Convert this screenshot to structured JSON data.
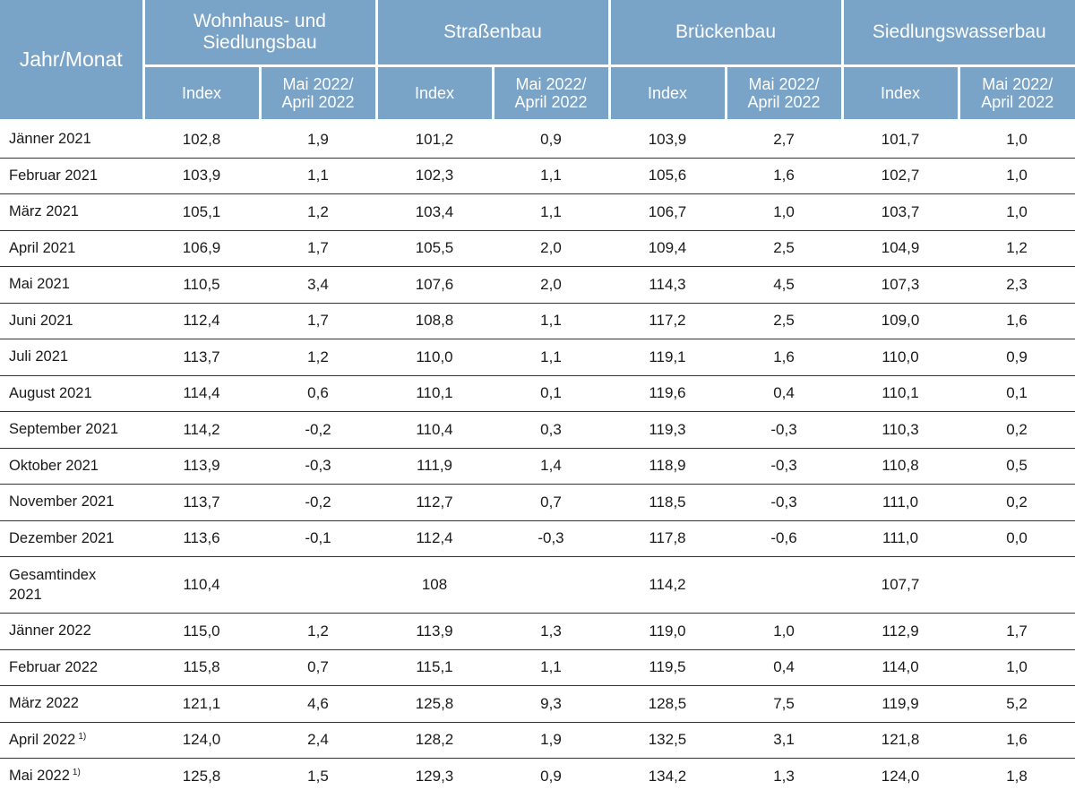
{
  "header": {
    "row_label": "Jahr/Monat",
    "groups": [
      {
        "name": "Wohnhaus- und Siedlungsbau"
      },
      {
        "name": "Straßenbau"
      },
      {
        "name": "Brückenbau"
      },
      {
        "name": "Siedlungswasserbau"
      }
    ],
    "sub_index": "Index",
    "sub_change": "Mai 2022/ April 2022"
  },
  "chart_data": {
    "type": "table",
    "columns": [
      "Jahr/Monat",
      "Wohnhaus- und Siedlungsbau Index",
      "Wohnhaus- und Siedlungsbau Mai 2022/ April 2022",
      "Straßenbau Index",
      "Straßenbau Mai 2022/ April 2022",
      "Brückenbau Index",
      "Brückenbau Mai 2022/ April 2022",
      "Siedlungswasserbau Index",
      "Siedlungswasserbau Mai 2022/ April 2022"
    ],
    "rows": [
      {
        "label": "Jänner 2021",
        "note": "",
        "values": [
          "102,8",
          "1,9",
          "101,2",
          "0,9",
          "103,9",
          "2,7",
          "101,7",
          "1,0"
        ]
      },
      {
        "label": "Februar 2021",
        "note": "",
        "values": [
          "103,9",
          "1,1",
          "102,3",
          "1,1",
          "105,6",
          "1,6",
          "102,7",
          "1,0"
        ]
      },
      {
        "label": "März 2021",
        "note": "",
        "values": [
          "105,1",
          "1,2",
          "103,4",
          "1,1",
          "106,7",
          "1,0",
          "103,7",
          "1,0"
        ]
      },
      {
        "label": "April 2021",
        "note": "",
        "values": [
          "106,9",
          "1,7",
          "105,5",
          "2,0",
          "109,4",
          "2,5",
          "104,9",
          "1,2"
        ]
      },
      {
        "label": "Mai 2021",
        "note": "",
        "values": [
          "110,5",
          "3,4",
          "107,6",
          "2,0",
          "114,3",
          "4,5",
          "107,3",
          "2,3"
        ]
      },
      {
        "label": "Juni 2021",
        "note": "",
        "values": [
          "112,4",
          "1,7",
          "108,8",
          "1,1",
          "117,2",
          "2,5",
          "109,0",
          "1,6"
        ]
      },
      {
        "label": "Juli 2021",
        "note": "",
        "values": [
          "113,7",
          "1,2",
          "110,0",
          "1,1",
          "119,1",
          "1,6",
          "110,0",
          "0,9"
        ]
      },
      {
        "label": "August 2021",
        "note": "",
        "values": [
          "114,4",
          "0,6",
          "110,1",
          "0,1",
          "119,6",
          "0,4",
          "110,1",
          "0,1"
        ]
      },
      {
        "label": "September 2021",
        "note": "",
        "values": [
          "114,2",
          "-0,2",
          "110,4",
          "0,3",
          "119,3",
          "-0,3",
          "110,3",
          "0,2"
        ]
      },
      {
        "label": "Oktober 2021",
        "note": "",
        "values": [
          "113,9",
          "-0,3",
          "111,9",
          "1,4",
          "118,9",
          "-0,3",
          "110,8",
          "0,5"
        ]
      },
      {
        "label": "November 2021",
        "note": "",
        "values": [
          "113,7",
          "-0,2",
          "112,7",
          "0,7",
          "118,5",
          "-0,3",
          "111,0",
          "0,2"
        ]
      },
      {
        "label": "Dezember 2021",
        "note": "",
        "values": [
          "113,6",
          "-0,1",
          "112,4",
          "-0,3",
          "117,8",
          "-0,6",
          "111,0",
          "0,0"
        ]
      },
      {
        "label": "Gesamtindex 2021",
        "note": "",
        "values": [
          "110,4",
          "",
          "108",
          "",
          "114,2",
          "",
          "107,7",
          ""
        ]
      },
      {
        "label": "Jänner 2022",
        "note": "",
        "values": [
          "115,0",
          "1,2",
          "113,9",
          "1,3",
          "119,0",
          "1,0",
          "112,9",
          "1,7"
        ]
      },
      {
        "label": "Februar 2022",
        "note": "",
        "values": [
          "115,8",
          "0,7",
          "115,1",
          "1,1",
          "119,5",
          "0,4",
          "114,0",
          "1,0"
        ]
      },
      {
        "label": "März 2022",
        "note": "",
        "values": [
          "121,1",
          "4,6",
          "125,8",
          "9,3",
          "128,5",
          "7,5",
          "119,9",
          "5,2"
        ]
      },
      {
        "label": "April 2022",
        "note": "1)",
        "values": [
          "124,0",
          "2,4",
          "128,2",
          "1,9",
          "132,5",
          "3,1",
          "121,8",
          "1,6"
        ]
      },
      {
        "label": "Mai 2022",
        "note": "1)",
        "values": [
          "125,8",
          "1,5",
          "129,3",
          "0,9",
          "134,2",
          "1,3",
          "124,0",
          "1,8"
        ]
      }
    ]
  },
  "colors": {
    "header_bg": "#7aa3c8",
    "header_text": "#ffffff",
    "rule": "#333333"
  }
}
